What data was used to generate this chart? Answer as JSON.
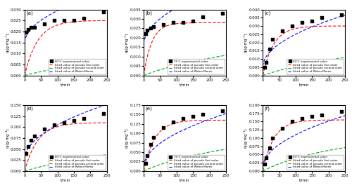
{
  "panels": [
    {
      "label": "(a)",
      "legend_temp": "60°C experimental value",
      "ylabel": "qₜ(g·mg⁻¹)",
      "xlabel": "t/min",
      "xlim": [
        0,
        250
      ],
      "ylim": [
        0,
        0.03
      ],
      "yticks": [
        0,
        0.005,
        0.01,
        0.015,
        0.02,
        0.025,
        0.03
      ],
      "exp_x": [
        5,
        10,
        20,
        30,
        60,
        90,
        120,
        150,
        180,
        240
      ],
      "exp_y": [
        0.0195,
        0.021,
        0.022,
        0.022,
        0.0235,
        0.025,
        0.025,
        0.025,
        0.026,
        0.029
      ],
      "pfo_params": [
        0.025,
        0.025
      ],
      "pso_params": [
        0.025,
        0.06
      ],
      "wm_params": [
        0.0015,
        0.0145
      ],
      "row": 0,
      "col": 0
    },
    {
      "label": "(b)",
      "legend_temp": "75°C experimental value",
      "ylabel": "qₜ(g·mg⁻¹)",
      "xlabel": "t/min",
      "xlim": [
        0,
        250
      ],
      "ylim": [
        0,
        0.035
      ],
      "yticks": [
        0,
        0.005,
        0.01,
        0.015,
        0.02,
        0.025,
        0.03,
        0.035
      ],
      "exp_x": [
        5,
        10,
        20,
        30,
        60,
        90,
        120,
        150,
        180,
        240
      ],
      "exp_y": [
        0.022,
        0.024,
        0.025,
        0.026,
        0.027,
        0.028,
        0.028,
        0.029,
        0.031,
        0.033
      ],
      "pfo_params": [
        0.028,
        0.04
      ],
      "pso_params": [
        0.029,
        0.08
      ],
      "wm_params": [
        0.002,
        0.016
      ],
      "row": 0,
      "col": 1
    },
    {
      "label": "(c)",
      "legend_temp": "90°C experimental value",
      "ylabel": "qₜ(g·mg⁻¹)",
      "xlabel": "t/min",
      "xlim": [
        0,
        250
      ],
      "ylim": [
        0,
        0.04
      ],
      "yticks": [
        0,
        0.005,
        0.01,
        0.015,
        0.02,
        0.025,
        0.03,
        0.035,
        0.04
      ],
      "exp_x": [
        5,
        10,
        20,
        30,
        60,
        90,
        120,
        150,
        180,
        240
      ],
      "exp_y": [
        0.005,
        0.008,
        0.016,
        0.022,
        0.027,
        0.03,
        0.032,
        0.033,
        0.035,
        0.037
      ],
      "pfo_params": [
        0.03,
        0.03
      ],
      "pso_params": [
        0.031,
        0.07
      ],
      "wm_params": [
        0.002,
        0.005
      ],
      "row": 0,
      "col": 2
    },
    {
      "label": "(d)",
      "legend_temp": "60°C experimental value",
      "ylabel": "qₜ(g·mg⁻¹)",
      "xlabel": "t/min",
      "xlim": [
        0,
        250
      ],
      "ylim": [
        0,
        0.15
      ],
      "yticks": [
        0,
        0.025,
        0.05,
        0.075,
        0.1,
        0.125,
        0.15
      ],
      "exp_x": [
        5,
        10,
        20,
        30,
        60,
        90,
        120,
        150,
        180,
        240
      ],
      "exp_y": [
        0.04,
        0.055,
        0.07,
        0.08,
        0.095,
        0.105,
        0.11,
        0.115,
        0.12,
        0.13
      ],
      "pfo_params": [
        0.11,
        0.025
      ],
      "pso_params": [
        0.12,
        0.015
      ],
      "wm_params": [
        0.008,
        0.025
      ],
      "row": 1,
      "col": 0
    },
    {
      "label": "(e)",
      "legend_temp": "75°C experimental value",
      "ylabel": "qₜ(g·mg⁻¹)",
      "xlabel": "t/min",
      "xlim": [
        0,
        250
      ],
      "ylim": [
        0,
        0.17
      ],
      "yticks": [
        0,
        0.025,
        0.05,
        0.075,
        0.1,
        0.125,
        0.15,
        0.175
      ],
      "exp_x": [
        5,
        10,
        20,
        30,
        60,
        90,
        120,
        150,
        180,
        240
      ],
      "exp_y": [
        0.02,
        0.04,
        0.07,
        0.09,
        0.115,
        0.13,
        0.14,
        0.145,
        0.15,
        0.16
      ],
      "pfo_params": [
        0.135,
        0.03
      ],
      "pso_params": [
        0.14,
        0.02
      ],
      "wm_params": [
        0.009,
        0.01
      ],
      "row": 1,
      "col": 1
    },
    {
      "label": "(f)",
      "legend_temp": "90°C experimental value",
      "ylabel": "qₜ(g·mg⁻¹)",
      "xlabel": "t/min",
      "xlim": [
        0,
        250
      ],
      "ylim": [
        0,
        0.2
      ],
      "yticks": [
        0,
        0.025,
        0.05,
        0.075,
        0.1,
        0.125,
        0.15,
        0.175,
        0.2
      ],
      "exp_x": [
        5,
        10,
        20,
        30,
        60,
        90,
        120,
        150,
        180,
        240
      ],
      "exp_y": [
        0.02,
        0.04,
        0.07,
        0.1,
        0.13,
        0.15,
        0.16,
        0.165,
        0.17,
        0.18
      ],
      "pfo_params": [
        0.155,
        0.03
      ],
      "pso_params": [
        0.16,
        0.02
      ],
      "wm_params": [
        0.01,
        0.01
      ],
      "row": 1,
      "col": 2
    }
  ],
  "colors": {
    "exp": "#000000",
    "pfo": "#FF0000",
    "pso": "#00AA00",
    "wm": "#0000FF"
  },
  "legend_labels": [
    "fitted value of pseudo first order",
    "fitted value of pseudo second order",
    "fitted value of Weber-Morris"
  ]
}
